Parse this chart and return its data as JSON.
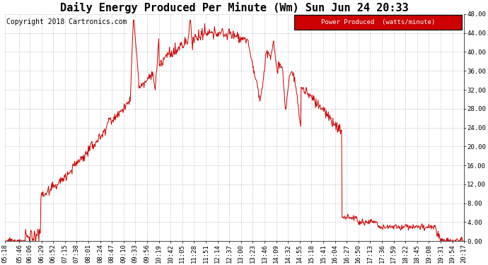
{
  "title": "Daily Energy Produced Per Minute (Wm) Sun Jun 24 20:33",
  "copyright": "Copyright 2018 Cartronics.com",
  "legend_label": "Power Produced  (watts/minute)",
  "legend_bg": "#cc0000",
  "legend_text_color": "#ffffff",
  "line_color": "#cc0000",
  "bg_color": "#ffffff",
  "grid_color": "#aaaaaa",
  "ylim": [
    0,
    48
  ],
  "yticks": [
    0.0,
    4.0,
    8.0,
    12.0,
    16.0,
    20.0,
    24.0,
    28.0,
    32.0,
    36.0,
    40.0,
    44.0,
    48.0
  ],
  "x_labels": [
    "05:18",
    "05:46",
    "06:06",
    "06:29",
    "06:52",
    "07:15",
    "07:38",
    "08:01",
    "08:24",
    "08:47",
    "09:10",
    "09:33",
    "09:56",
    "10:19",
    "10:42",
    "11:05",
    "11:28",
    "11:51",
    "12:14",
    "12:37",
    "13:00",
    "13:23",
    "13:46",
    "14:09",
    "14:32",
    "14:55",
    "15:18",
    "15:41",
    "16:04",
    "16:27",
    "16:50",
    "17:13",
    "17:36",
    "17:59",
    "18:22",
    "18:45",
    "19:08",
    "19:31",
    "19:54",
    "20:17"
  ],
  "title_fontsize": 11,
  "tick_fontsize": 6.5,
  "copyright_fontsize": 7
}
